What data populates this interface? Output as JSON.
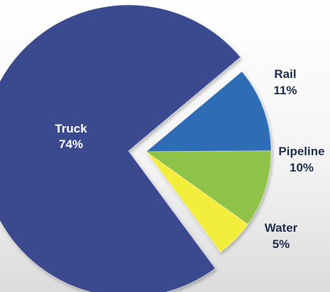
{
  "chart_data": {
    "type": "pie",
    "style": "exploded",
    "title": "",
    "slices": [
      {
        "label": "Truck",
        "value": 74,
        "value_label": "74%",
        "color": "#3a4a8f",
        "exploded": false,
        "label_color": "#ffffff"
      },
      {
        "label": "Rail",
        "value": 11,
        "value_label": "11%",
        "color": "#2f6db5",
        "exploded": true,
        "label_color": "#1f2f4f"
      },
      {
        "label": "Pipeline",
        "value": 10,
        "value_label": "10%",
        "color": "#8fc24a",
        "exploded": true,
        "label_color": "#1f2f4f"
      },
      {
        "label": "Water",
        "value": 5,
        "value_label": "5%",
        "color": "#f2ee3a",
        "exploded": true,
        "label_color": "#1f2f4f"
      }
    ]
  }
}
